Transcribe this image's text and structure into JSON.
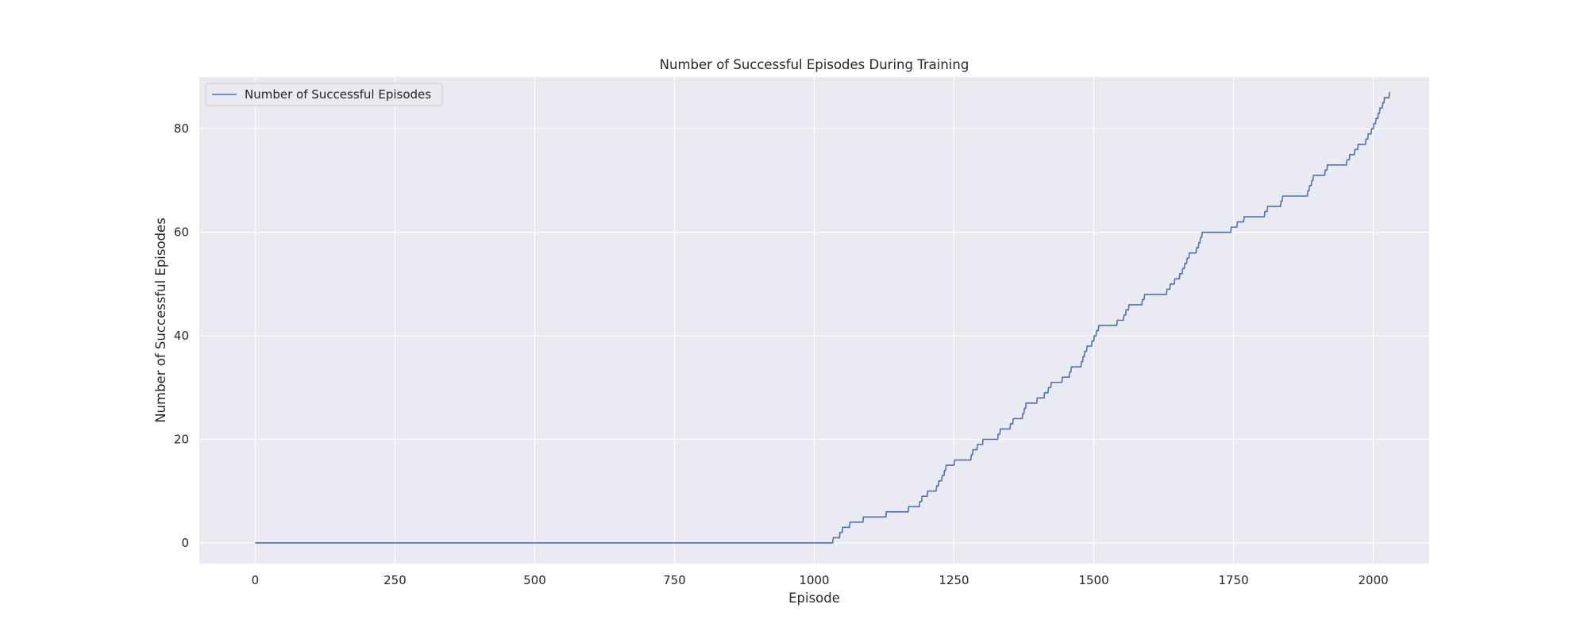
{
  "colors": {
    "plot_background": "#eaeaf2",
    "grid": "#ffffff",
    "line": "#4c72b0",
    "text": "#262626"
  },
  "chart_data": {
    "type": "line",
    "title": "Number of Successful Episodes During Training",
    "xlabel": "Episode",
    "ylabel": "Number of Successful Episodes",
    "xlim": [
      -100,
      2100
    ],
    "ylim": [
      -4,
      90
    ],
    "xticks": [
      0,
      250,
      500,
      750,
      1000,
      1250,
      1500,
      1750,
      2000
    ],
    "yticks": [
      0,
      20,
      40,
      60,
      80
    ],
    "grid": true,
    "legend": {
      "position": "upper-left",
      "entries": [
        "Number of Successful Episodes"
      ]
    },
    "series": [
      {
        "name": "Number of Successful Episodes",
        "step": true,
        "points": [
          [
            0,
            0
          ],
          [
            1033,
            0
          ],
          [
            1034,
            1
          ],
          [
            1045,
            1
          ],
          [
            1046,
            2
          ],
          [
            1050,
            2
          ],
          [
            1051,
            3
          ],
          [
            1063,
            3
          ],
          [
            1064,
            4
          ],
          [
            1087,
            4
          ],
          [
            1088,
            5
          ],
          [
            1128,
            5
          ],
          [
            1129,
            6
          ],
          [
            1168,
            6
          ],
          [
            1169,
            7
          ],
          [
            1188,
            7
          ],
          [
            1189,
            8
          ],
          [
            1192,
            8
          ],
          [
            1193,
            9
          ],
          [
            1202,
            9
          ],
          [
            1203,
            10
          ],
          [
            1218,
            10
          ],
          [
            1219,
            11
          ],
          [
            1222,
            11
          ],
          [
            1223,
            12
          ],
          [
            1228,
            12
          ],
          [
            1229,
            13
          ],
          [
            1232,
            13
          ],
          [
            1233,
            14
          ],
          [
            1235,
            14
          ],
          [
            1236,
            15
          ],
          [
            1250,
            15
          ],
          [
            1251,
            16
          ],
          [
            1280,
            16
          ],
          [
            1281,
            17
          ],
          [
            1283,
            17
          ],
          [
            1284,
            18
          ],
          [
            1291,
            18
          ],
          [
            1292,
            19
          ],
          [
            1301,
            19
          ],
          [
            1302,
            20
          ],
          [
            1328,
            20
          ],
          [
            1329,
            21
          ],
          [
            1332,
            21
          ],
          [
            1333,
            22
          ],
          [
            1350,
            22
          ],
          [
            1351,
            23
          ],
          [
            1355,
            23
          ],
          [
            1356,
            24
          ],
          [
            1372,
            24
          ],
          [
            1373,
            25
          ],
          [
            1375,
            25
          ],
          [
            1376,
            26
          ],
          [
            1378,
            26
          ],
          [
            1379,
            27
          ],
          [
            1398,
            27
          ],
          [
            1399,
            28
          ],
          [
            1411,
            28
          ],
          [
            1412,
            29
          ],
          [
            1418,
            29
          ],
          [
            1419,
            30
          ],
          [
            1423,
            30
          ],
          [
            1424,
            31
          ],
          [
            1443,
            31
          ],
          [
            1444,
            32
          ],
          [
            1456,
            32
          ],
          [
            1457,
            33
          ],
          [
            1459,
            33
          ],
          [
            1460,
            34
          ],
          [
            1477,
            34
          ],
          [
            1478,
            35
          ],
          [
            1480,
            35
          ],
          [
            1481,
            36
          ],
          [
            1483,
            36
          ],
          [
            1484,
            37
          ],
          [
            1487,
            37
          ],
          [
            1488,
            38
          ],
          [
            1496,
            38
          ],
          [
            1497,
            39
          ],
          [
            1500,
            39
          ],
          [
            1501,
            40
          ],
          [
            1504,
            40
          ],
          [
            1505,
            41
          ],
          [
            1508,
            41
          ],
          [
            1509,
            42
          ],
          [
            1541,
            42
          ],
          [
            1542,
            43
          ],
          [
            1553,
            43
          ],
          [
            1554,
            44
          ],
          [
            1557,
            44
          ],
          [
            1558,
            45
          ],
          [
            1562,
            45
          ],
          [
            1563,
            46
          ],
          [
            1586,
            46
          ],
          [
            1587,
            47
          ],
          [
            1590,
            47
          ],
          [
            1591,
            48
          ],
          [
            1630,
            48
          ],
          [
            1631,
            49
          ],
          [
            1636,
            49
          ],
          [
            1637,
            50
          ],
          [
            1644,
            50
          ],
          [
            1645,
            51
          ],
          [
            1653,
            51
          ],
          [
            1654,
            52
          ],
          [
            1658,
            52
          ],
          [
            1659,
            53
          ],
          [
            1662,
            53
          ],
          [
            1663,
            54
          ],
          [
            1666,
            54
          ],
          [
            1667,
            55
          ],
          [
            1670,
            55
          ],
          [
            1671,
            56
          ],
          [
            1683,
            56
          ],
          [
            1684,
            57
          ],
          [
            1687,
            57
          ],
          [
            1688,
            58
          ],
          [
            1690,
            58
          ],
          [
            1691,
            59
          ],
          [
            1693,
            59
          ],
          [
            1694,
            60
          ],
          [
            1745,
            60
          ],
          [
            1746,
            61
          ],
          [
            1756,
            61
          ],
          [
            1757,
            62
          ],
          [
            1768,
            62
          ],
          [
            1769,
            63
          ],
          [
            1805,
            63
          ],
          [
            1806,
            64
          ],
          [
            1810,
            64
          ],
          [
            1811,
            65
          ],
          [
            1834,
            65
          ],
          [
            1835,
            66
          ],
          [
            1837,
            66
          ],
          [
            1838,
            67
          ],
          [
            1882,
            67
          ],
          [
            1883,
            68
          ],
          [
            1885,
            68
          ],
          [
            1886,
            69
          ],
          [
            1889,
            69
          ],
          [
            1890,
            70
          ],
          [
            1892,
            70
          ],
          [
            1893,
            71
          ],
          [
            1913,
            71
          ],
          [
            1914,
            72
          ],
          [
            1917,
            72
          ],
          [
            1918,
            73
          ],
          [
            1952,
            73
          ],
          [
            1953,
            74
          ],
          [
            1957,
            74
          ],
          [
            1958,
            75
          ],
          [
            1966,
            75
          ],
          [
            1967,
            76
          ],
          [
            1972,
            76
          ],
          [
            1973,
            77
          ],
          [
            1986,
            77
          ],
          [
            1987,
            78
          ],
          [
            1990,
            78
          ],
          [
            1991,
            79
          ],
          [
            1996,
            79
          ],
          [
            1997,
            80
          ],
          [
            2000,
            80
          ],
          [
            2001,
            81
          ],
          [
            2004,
            81
          ],
          [
            2005,
            82
          ],
          [
            2008,
            82
          ],
          [
            2009,
            83
          ],
          [
            2011,
            83
          ],
          [
            2012,
            84
          ],
          [
            2016,
            84
          ],
          [
            2017,
            85
          ],
          [
            2019,
            85
          ],
          [
            2020,
            86
          ],
          [
            2028,
            86
          ],
          [
            2029,
            87
          ],
          [
            2030,
            87
          ]
        ]
      }
    ]
  }
}
